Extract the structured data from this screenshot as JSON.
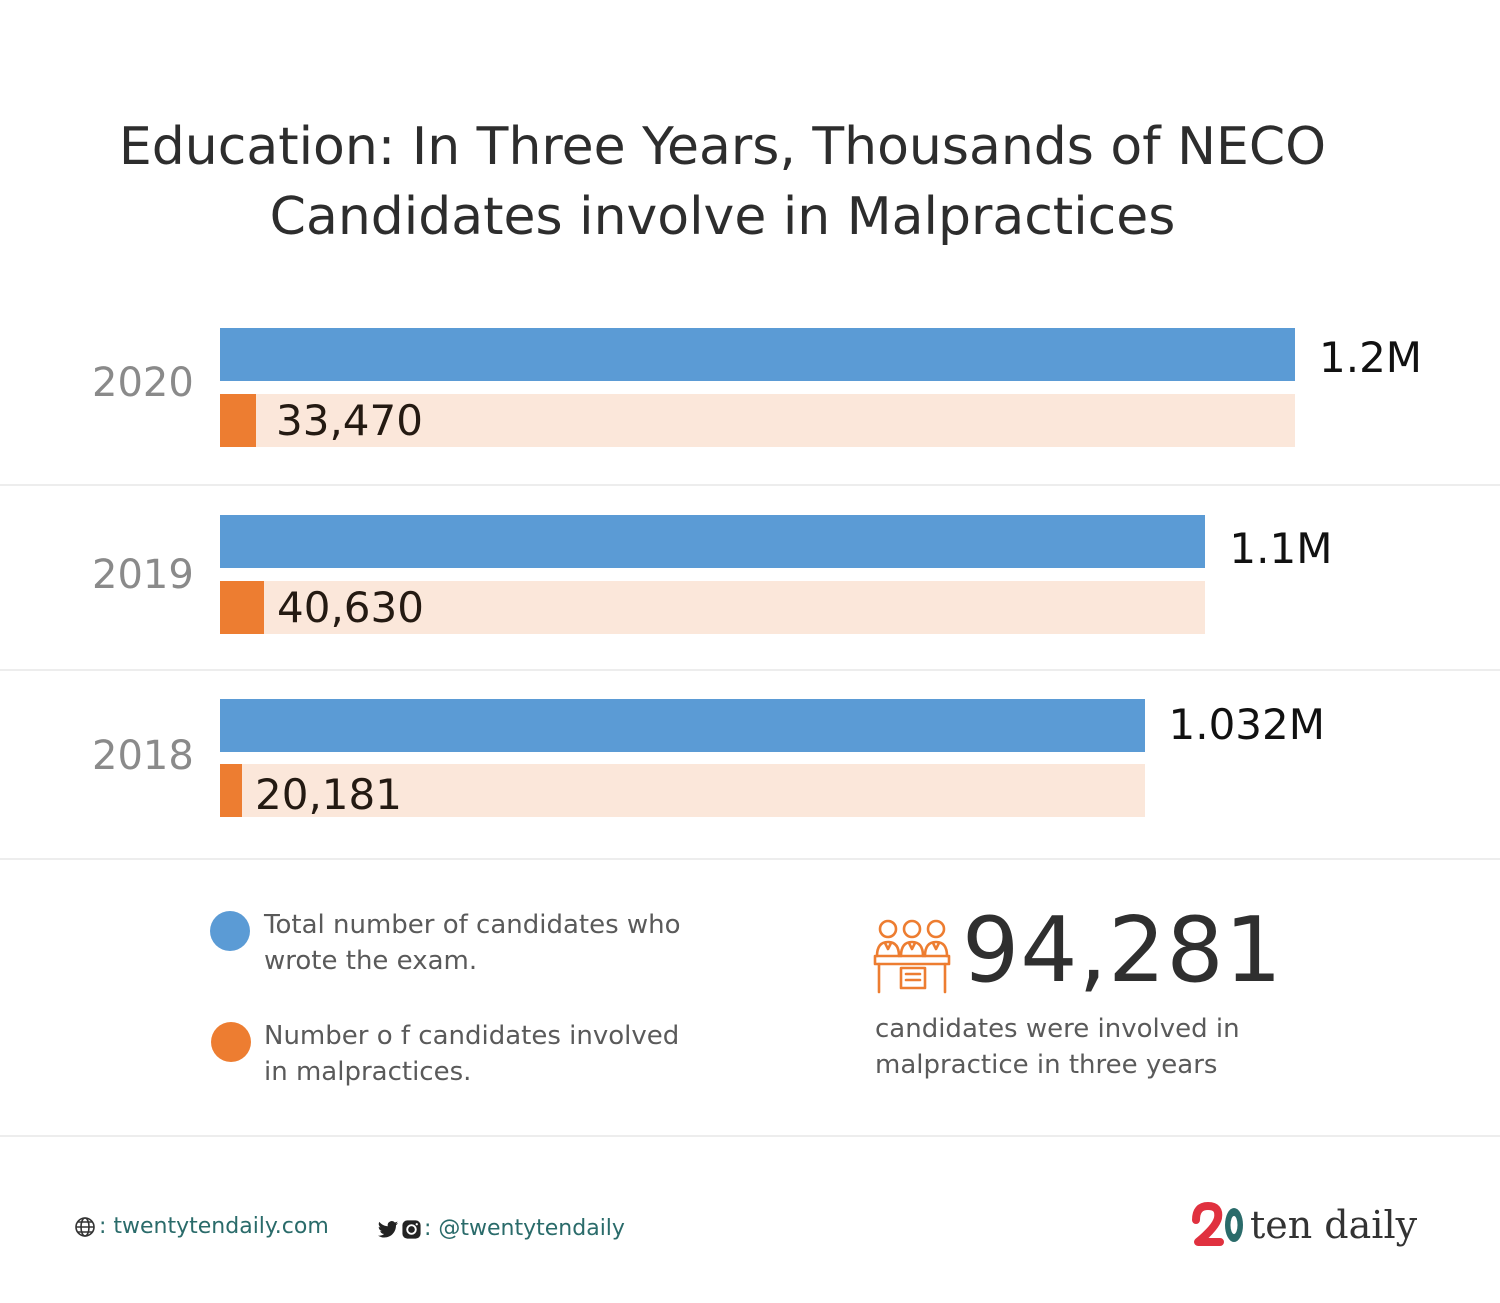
{
  "title_lines": [
    "Education: In Three Years, Thousands of NECO",
    "Candidates involve in Malpractices"
  ],
  "colors": {
    "total": "#5b9bd5",
    "malpractice": "#ed7d31",
    "track": "#fbe7da",
    "icon": "#ed7d31",
    "brand_red": "#e0313f",
    "brand_teal": "#2a6b6a"
  },
  "chart_data": {
    "type": "bar",
    "orientation": "horizontal",
    "categories": [
      "2020",
      "2019",
      "2018"
    ],
    "series": [
      {
        "name": "Total number of candidates who wrote the exam.",
        "values": [
          1200000,
          1100000,
          1032000
        ],
        "labels": [
          "1.2M",
          "1.1M",
          "1.032M"
        ]
      },
      {
        "name": "Number o f candidates involved in malpractices.",
        "values": [
          33470,
          40630,
          20181
        ],
        "labels": [
          "33,470",
          "40,630",
          "20,181"
        ]
      }
    ],
    "malpractice_max": 1000000,
    "grid": false,
    "legend": "bottom-left"
  },
  "legend": {
    "total_lines": [
      "Total number of candidates who",
      "wrote the exam."
    ],
    "malpractice_lines": [
      "Number o f candidates involved",
      "in malpractices."
    ]
  },
  "summary": {
    "value": "94,281",
    "caption_lines": [
      "candidates were involved in",
      "malpractice in three years"
    ],
    "icon": "exam-candidates-icon"
  },
  "footer": {
    "website_icon": "globe-icon",
    "website": ": twentytendaily.com",
    "social_icons": [
      "twitter-icon",
      "instagram-icon"
    ],
    "social": ": @twentytendaily",
    "brand_logo_text": "ten daily"
  }
}
